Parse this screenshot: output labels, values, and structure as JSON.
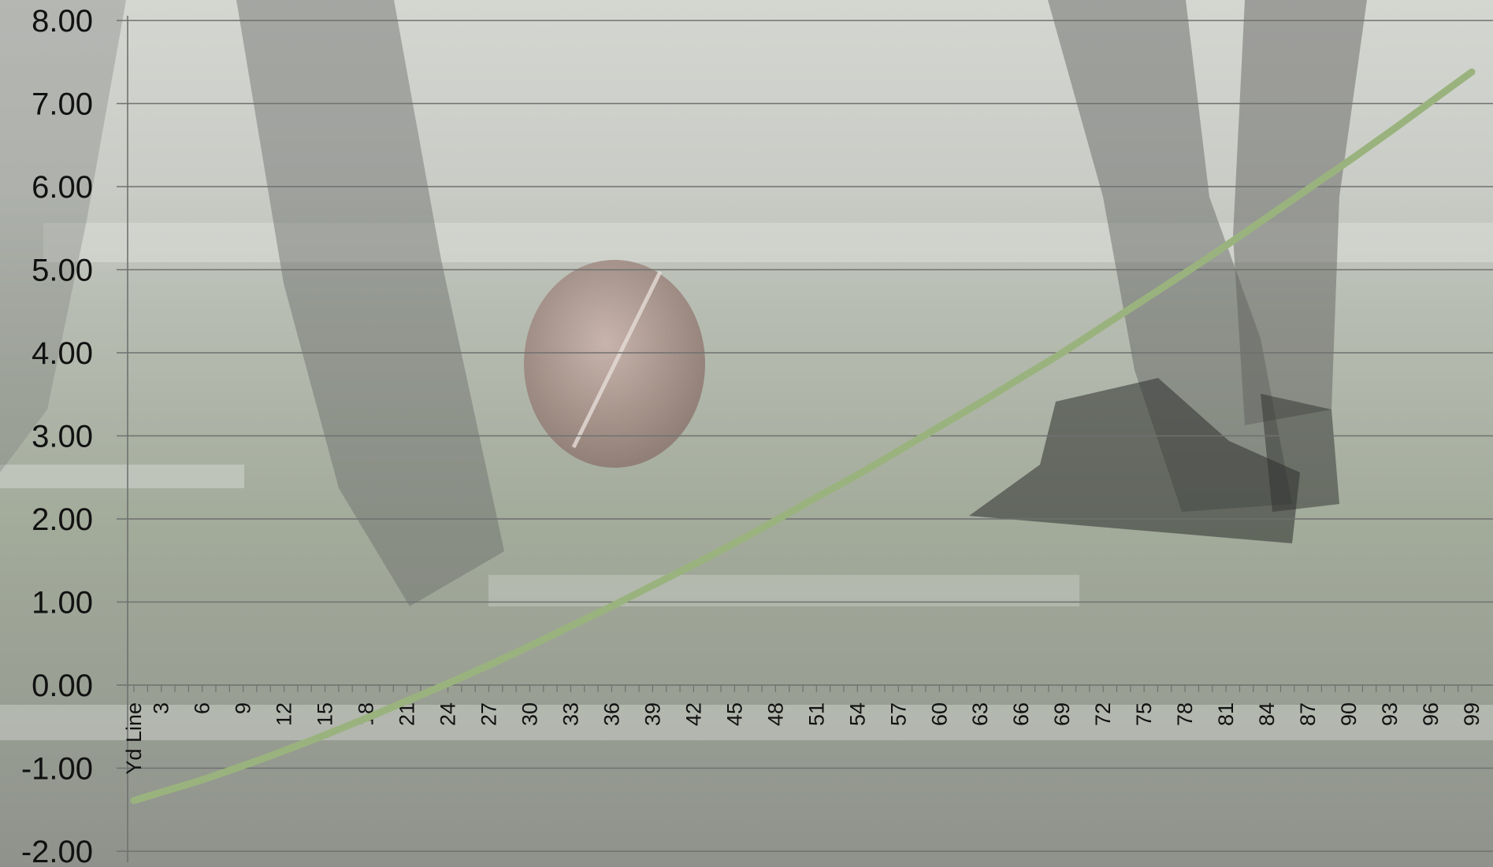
{
  "colors": {
    "line": "#9ab37e",
    "grid": "#6f716f",
    "text": "#111111",
    "background_field": "#9aa294",
    "background_sky": "#cfd2cc"
  },
  "chart_data": {
    "type": "line",
    "title": "",
    "xlabel": "",
    "ylabel": "",
    "first_category_label": "Yd Line",
    "x_tick_labels": [
      "Yd Line",
      "3",
      "6",
      "9",
      "12",
      "15",
      "18",
      "21",
      "24",
      "27",
      "30",
      "33",
      "36",
      "39",
      "42",
      "45",
      "48",
      "51",
      "54",
      "57",
      "60",
      "63",
      "66",
      "69",
      "72",
      "75",
      "78",
      "81",
      "84",
      "87",
      "90",
      "93",
      "96",
      "99"
    ],
    "y_tick_labels": [
      "8.00",
      "7.00",
      "6.00",
      "5.00",
      "4.00",
      "3.00",
      "2.00",
      "1.00",
      "0.00",
      "-1.00",
      "-2.00"
    ],
    "ylim": [
      -2,
      8
    ],
    "xlim": [
      1,
      99
    ],
    "grid": true,
    "legend": "none",
    "series": [
      {
        "x": [
          1,
          3,
          6,
          9,
          12,
          15,
          18,
          21,
          24,
          27,
          30,
          33,
          36,
          39,
          42,
          45,
          48,
          51,
          54,
          57,
          60,
          63,
          66,
          69,
          72,
          75,
          78,
          81,
          84,
          87,
          90,
          93,
          96,
          99
        ],
        "values": [
          -1.39,
          -1.29,
          -1.14,
          -0.97,
          -0.79,
          -0.6,
          -0.4,
          -0.19,
          0.02,
          0.24,
          0.47,
          0.71,
          0.95,
          1.2,
          1.45,
          1.71,
          1.98,
          2.26,
          2.53,
          2.82,
          3.11,
          3.4,
          3.7,
          4.0,
          4.32,
          4.64,
          4.96,
          5.29,
          5.63,
          5.97,
          6.31,
          6.66,
          7.02,
          7.38
        ]
      }
    ]
  }
}
